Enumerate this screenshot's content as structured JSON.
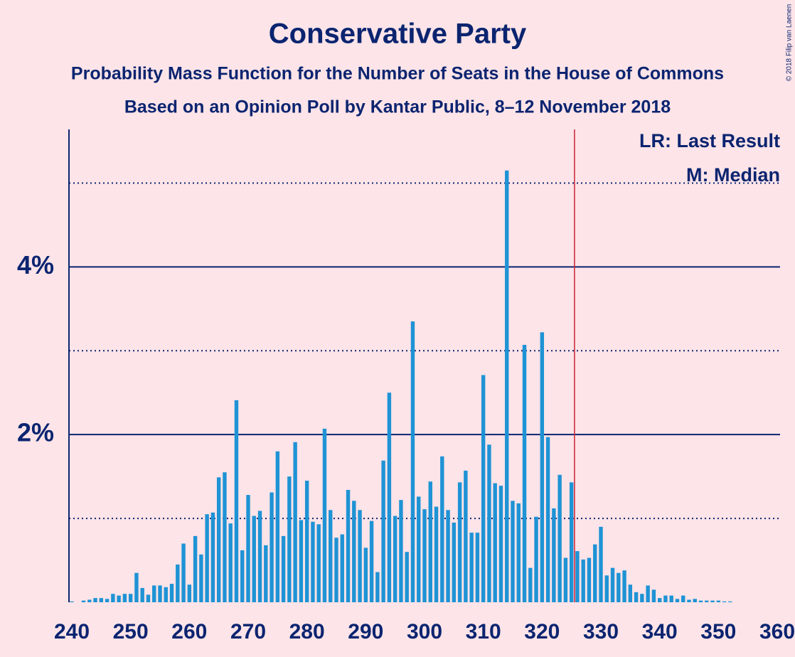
{
  "chart_data": {
    "type": "bar",
    "title": "Conservative Party",
    "subtitle": "Probability Mass Function for the Number of Seats in the House of Commons",
    "subtitle2": "Based on an Opinion Poll by Kantar Public, 8–12 November 2018",
    "copyright": "© 2018 Filip van Laenen",
    "legend": [
      "LR: Last Result",
      "M: Median"
    ],
    "color": "#1e93d5",
    "last_result": 326,
    "last_result_color": "#cc2233",
    "x": [
      240,
      241,
      242,
      243,
      244,
      245,
      246,
      247,
      248,
      249,
      250,
      251,
      252,
      253,
      254,
      255,
      256,
      257,
      258,
      259,
      260,
      261,
      262,
      263,
      264,
      265,
      266,
      267,
      268,
      269,
      270,
      271,
      272,
      273,
      274,
      275,
      276,
      277,
      278,
      279,
      280,
      281,
      282,
      283,
      284,
      285,
      286,
      287,
      288,
      289,
      290,
      291,
      292,
      293,
      294,
      295,
      296,
      297,
      298,
      299,
      300,
      301,
      302,
      303,
      304,
      305,
      306,
      307,
      308,
      309,
      310,
      311,
      312,
      313,
      314,
      315,
      316,
      317,
      318,
      319,
      320,
      321,
      322,
      323,
      324,
      325,
      326,
      327,
      328,
      329,
      330,
      331,
      332,
      333,
      334,
      335,
      336,
      337,
      338,
      339,
      340,
      341,
      342,
      343,
      344,
      345,
      346,
      347,
      348,
      349,
      350,
      351,
      352,
      353,
      354,
      355,
      356,
      357,
      358,
      359,
      360
    ],
    "values": [
      0.01,
      0,
      0.02,
      0.03,
      0.05,
      0.05,
      0.04,
      0.1,
      0.08,
      0.1,
      0.1,
      0.35,
      0.17,
      0.09,
      0.2,
      0.2,
      0.18,
      0.22,
      0.45,
      0.7,
      0.21,
      0.79,
      0.57,
      1.05,
      1.07,
      1.49,
      1.55,
      0.94,
      2.41,
      0.62,
      1.28,
      1.03,
      1.09,
      0.68,
      1.31,
      1.8,
      0.79,
      1.5,
      1.91,
      0.98,
      1.45,
      0.96,
      0.93,
      2.07,
      1.1,
      0.77,
      0.81,
      1.34,
      1.21,
      1.1,
      0.65,
      0.97,
      0.36,
      1.69,
      2.5,
      1.03,
      1.22,
      0.6,
      3.35,
      1.26,
      1.11,
      1.44,
      1.14,
      1.74,
      1.1,
      0.95,
      1.43,
      1.57,
      0.83,
      0.83,
      2.71,
      1.88,
      1.42,
      1.39,
      5.15,
      1.21,
      1.18,
      3.07,
      0.41,
      1.02,
      3.22,
      1.97,
      1.12,
      1.52,
      0.53,
      1.43,
      0.61,
      0.51,
      0.53,
      0.69,
      0.9,
      0.32,
      0.41,
      0.35,
      0.38,
      0.21,
      0.12,
      0.1,
      0.2,
      0.15,
      0.05,
      0.08,
      0.08,
      0.04,
      0.08,
      0.03,
      0.04,
      0.02,
      0.02,
      0.02,
      0.02,
      0.01,
      0.01,
      0,
      0,
      0,
      0,
      0,
      0,
      0,
      0
    ],
    "xlim": [
      240,
      360
    ],
    "xticks": [
      240,
      250,
      260,
      270,
      280,
      290,
      300,
      310,
      320,
      330,
      340,
      350,
      360
    ],
    "ylim": [
      0,
      5.64
    ],
    "yticks": [
      {
        "value": 2,
        "label": "2%"
      },
      {
        "value": 4,
        "label": "4%"
      }
    ],
    "minor_grid": [
      1,
      3,
      5
    ]
  }
}
